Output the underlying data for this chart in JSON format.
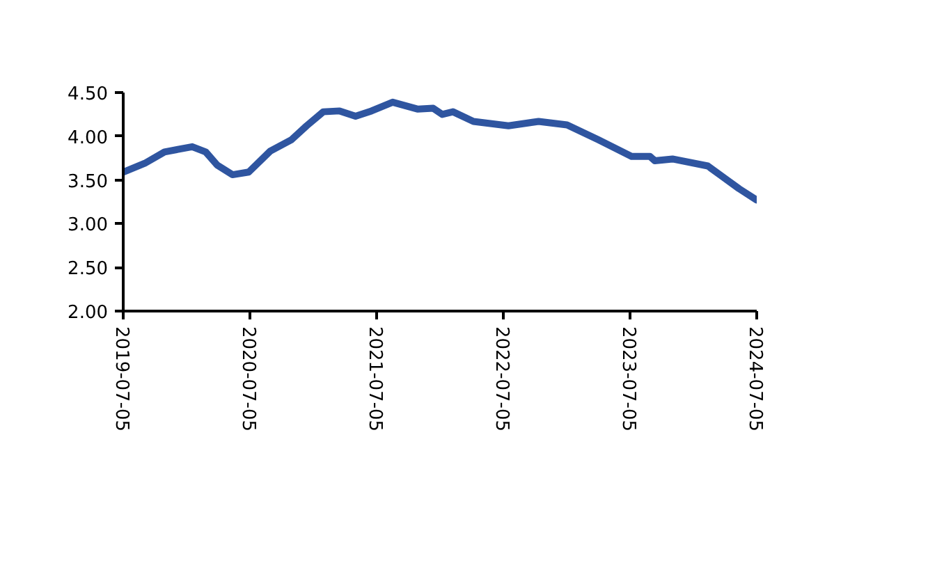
{
  "chart_data": {
    "type": "line",
    "x": [
      "2019-07-05",
      "2019-09-05",
      "2019-11-01",
      "2019-12-10",
      "2020-01-20",
      "2020-02-28",
      "2020-04-01",
      "2020-05-15",
      "2020-07-01",
      "2020-09-01",
      "2020-11-01",
      "2020-12-15",
      "2021-02-01",
      "2021-03-20",
      "2021-05-05",
      "2021-06-20",
      "2021-08-20",
      "2021-11-01",
      "2021-12-15",
      "2022-01-10",
      "2022-02-10",
      "2022-04-10",
      "2022-07-20",
      "2022-10-15",
      "2023-01-05",
      "2023-04-05",
      "2023-07-10",
      "2023-09-01",
      "2023-09-15",
      "2023-11-05",
      "2024-02-15",
      "2024-05-15",
      "2024-07-05"
    ],
    "series": [
      {
        "color": "#2f55a0",
        "values": [
          3.59,
          3.69,
          3.82,
          3.85,
          3.88,
          3.82,
          3.67,
          3.56,
          3.59,
          3.83,
          3.96,
          4.12,
          4.28,
          4.29,
          4.23,
          4.29,
          4.39,
          4.31,
          4.32,
          4.25,
          4.28,
          4.17,
          4.12,
          4.17,
          4.13,
          3.96,
          3.77,
          3.77,
          3.72,
          3.74,
          3.66,
          3.4,
          3.27
        ]
      }
    ],
    "xlim": [
      "2019-07-05",
      "2024-07-05"
    ],
    "xticks": [
      {
        "value": "2019-07-05",
        "label": "2019-07-05"
      },
      {
        "value": "2020-07-05",
        "label": "2020-07-05"
      },
      {
        "value": "2021-07-05",
        "label": "2021-07-05"
      },
      {
        "value": "2022-07-05",
        "label": "2022-07-05"
      },
      {
        "value": "2023-07-05",
        "label": "2023-07-05"
      },
      {
        "value": "2024-07-05",
        "label": "2024-07-05"
      }
    ],
    "ylim": [
      2.0,
      4.5
    ],
    "yticks": [
      {
        "value": 2.0,
        "label": "2.00"
      },
      {
        "value": 2.5,
        "label": "2.50"
      },
      {
        "value": 3.0,
        "label": "3.00"
      },
      {
        "value": 3.5,
        "label": "3.50"
      },
      {
        "value": 4.0,
        "label": "4.00"
      },
      {
        "value": 4.5,
        "label": "4.50"
      }
    ],
    "grid": false,
    "marker": "none",
    "line_style": "solid"
  }
}
